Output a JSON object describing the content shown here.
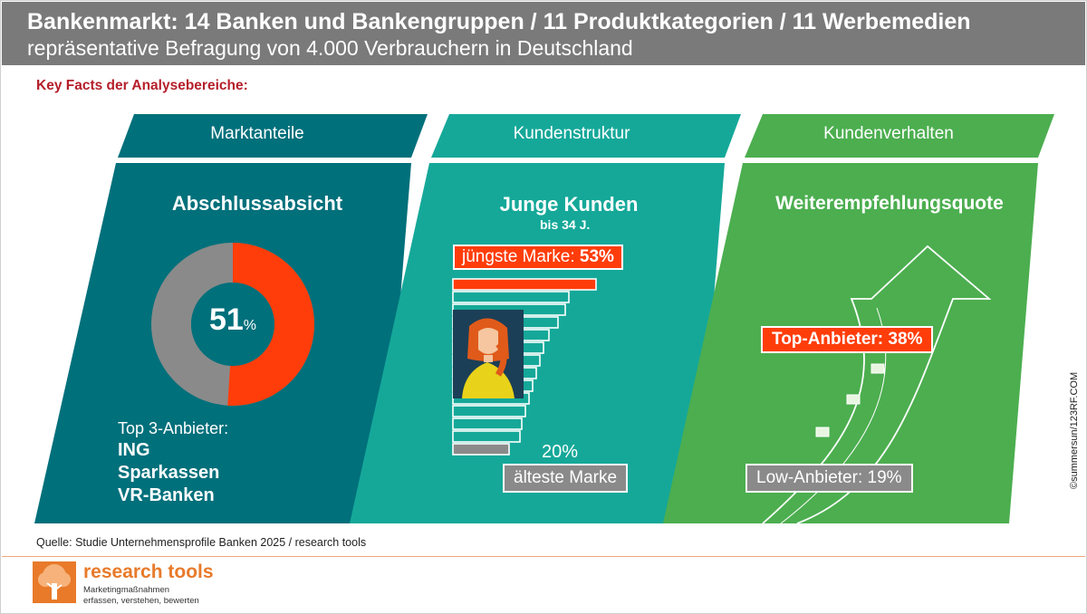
{
  "header": {
    "title": "Bankenmarkt: 14 Banken und Bankengruppen / 11 Produktkategorien / 11 Werbemedien",
    "subtitle": "repräsentative Befragung von 4.000 Verbrauchern in Deutschland"
  },
  "key_facts_label": "Key Facts der Analysebereiche:",
  "panels": {
    "marktanteile": {
      "header": "Marktanteile",
      "title": "Abschlussabsicht",
      "donut_value": "51",
      "donut_unit": "%",
      "donut_share": 0.51,
      "top3_label": "Top 3-Anbieter:",
      "top3": [
        "ING",
        "Sparkassen",
        "VR-Banken"
      ]
    },
    "kundenstruktur": {
      "header": "Kundenstruktur",
      "title": "Junge Kunden",
      "subtitle": "bis 34 J.",
      "youngest_label": "jüngste Marke: ",
      "youngest_value": "53%",
      "oldest_value": "20%",
      "oldest_label": "älteste Marke"
    },
    "kundenverhalten": {
      "header": "Kundenverhalten",
      "title": "Weiterempfehlungsquote",
      "top_label": "Top-Anbieter: 38%",
      "low_label": "Low-Anbieter: 19%"
    }
  },
  "colors": {
    "header_bg": "#7a7a7a",
    "panel1": "#00707b",
    "panel2": "#15a899",
    "panel3": "#4cae4f",
    "accent_red": "#ff3d0a",
    "donut_gray": "#8a8a8a",
    "key_facts": "#b51e2a",
    "logo_orange": "#e87a2a"
  },
  "source": "Quelle: Studie Unternehmensprofile Banken 2025 / research tools",
  "logo": {
    "name": "research tools",
    "tagline_1": "Marketingmaßnahmen",
    "tagline_2": "erfassen, verstehen, bewerten",
    "icon": "tree-icon"
  },
  "photo_credit": "©summersun/123RF.COM"
}
